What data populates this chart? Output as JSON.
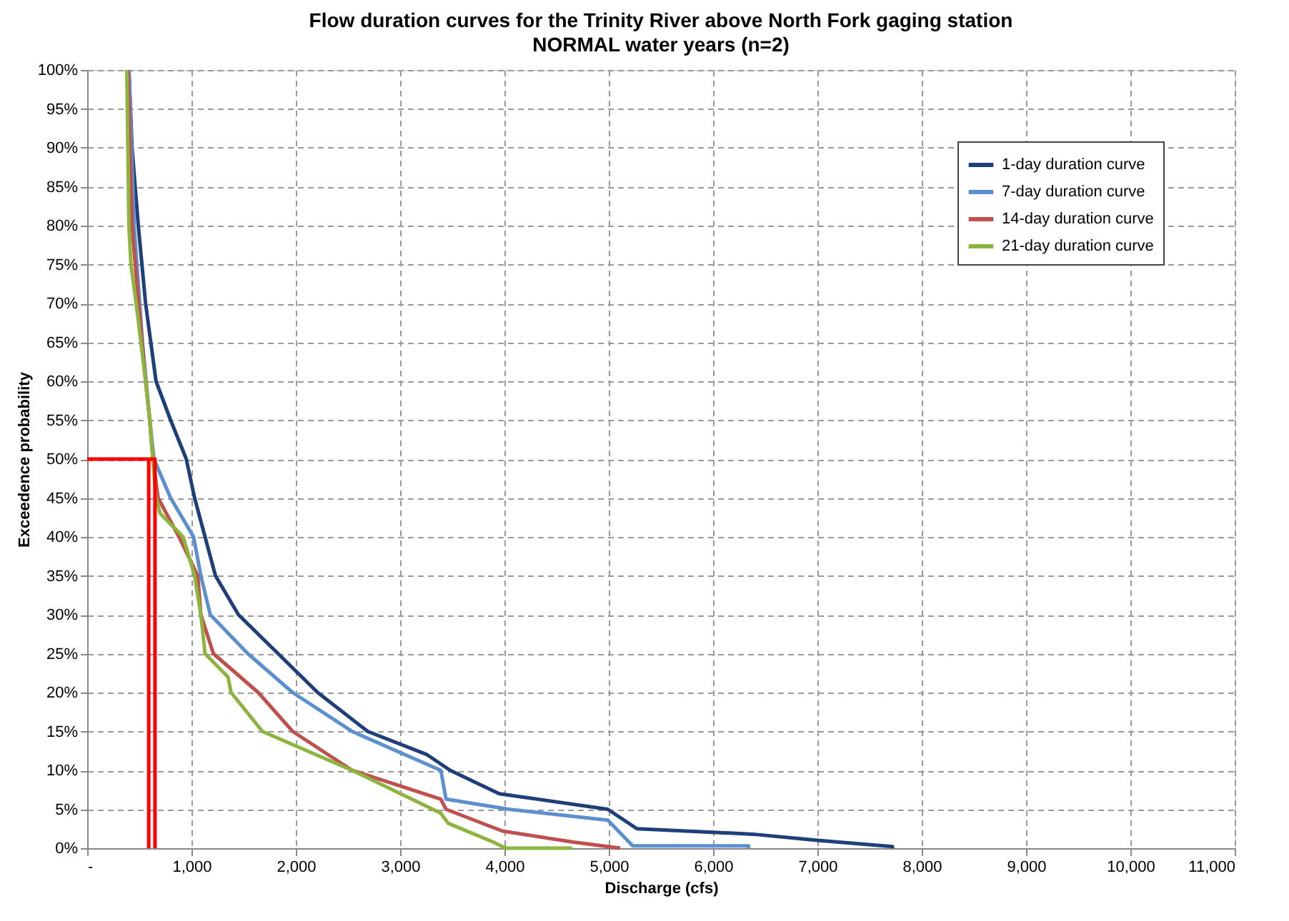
{
  "chart_data": {
    "type": "line",
    "title": "Flow duration curves for the Trinity River above North Fork gaging station",
    "subtitle": "NORMAL water years (n=2)",
    "xlabel": "Discharge (cfs)",
    "ylabel": "Exceedence probability",
    "xlim": [
      0,
      11000
    ],
    "xticks": [
      {
        "value": 0,
        "label": "-"
      },
      {
        "value": 1000,
        "label": "1,000"
      },
      {
        "value": 2000,
        "label": "2,000"
      },
      {
        "value": 3000,
        "label": "3,000"
      },
      {
        "value": 4000,
        "label": "4,000"
      },
      {
        "value": 5000,
        "label": "5,000"
      },
      {
        "value": 6000,
        "label": "6,000"
      },
      {
        "value": 7000,
        "label": "7,000"
      },
      {
        "value": 8000,
        "label": "8,000"
      },
      {
        "value": 9000,
        "label": "9,000"
      },
      {
        "value": 10000,
        "label": "10,000"
      },
      {
        "value": 11000,
        "label": "11,000"
      }
    ],
    "ylim": [
      0,
      100
    ],
    "yticks": [
      {
        "value": 0,
        "label": "0%"
      },
      {
        "value": 5,
        "label": "5%"
      },
      {
        "value": 10,
        "label": "10%"
      },
      {
        "value": 15,
        "label": "15%"
      },
      {
        "value": 20,
        "label": "20%"
      },
      {
        "value": 25,
        "label": "25%"
      },
      {
        "value": 30,
        "label": "30%"
      },
      {
        "value": 35,
        "label": "35%"
      },
      {
        "value": 40,
        "label": "40%"
      },
      {
        "value": 45,
        "label": "45%"
      },
      {
        "value": 50,
        "label": "50%"
      },
      {
        "value": 55,
        "label": "55%"
      },
      {
        "value": 60,
        "label": "60%"
      },
      {
        "value": 65,
        "label": "65%"
      },
      {
        "value": 70,
        "label": "70%"
      },
      {
        "value": 75,
        "label": "75%"
      },
      {
        "value": 80,
        "label": "80%"
      },
      {
        "value": 85,
        "label": "85%"
      },
      {
        "value": 90,
        "label": "90%"
      },
      {
        "value": 95,
        "label": "95%"
      },
      {
        "value": 100,
        "label": "100%"
      }
    ],
    "grid": true,
    "legend": "top right",
    "marker": "none",
    "line_style": "solid",
    "series": [
      {
        "name": "1-day duration curve",
        "color": "#1f3f7a",
        "x": [
          400,
          430,
          490,
          560,
          660,
          800,
          950,
          1030,
          1130,
          1230,
          1450,
          1830,
          2210,
          2690,
          3260,
          3480,
          3950,
          4990,
          5270,
          6380,
          7000,
          7720,
          7720
        ],
        "values": [
          100,
          90,
          80,
          70,
          60,
          55,
          50,
          45,
          40,
          35,
          30,
          25,
          20,
          15,
          12,
          10,
          7,
          5,
          2.5,
          1.8,
          1,
          0.2,
          0
        ]
      },
      {
        "name": "7-day duration curve",
        "color": "#5b8fd0",
        "x": [
          400,
          450,
          530,
          600,
          640,
          800,
          1020,
          1090,
          1180,
          1540,
          1970,
          2540,
          3390,
          3440,
          4040,
          4990,
          5230,
          6340,
          6340
        ],
        "values": [
          100,
          80,
          65,
          55,
          50,
          45,
          40,
          35,
          30,
          25,
          20,
          15,
          10,
          6.3,
          5,
          3.6,
          0.3,
          0.3,
          0
        ]
      },
      {
        "name": "14-day duration curve",
        "color": "#c0504d",
        "x": [
          390,
          430,
          480,
          560,
          600,
          630,
          680,
          880,
          1060,
          1090,
          1210,
          1640,
          1970,
          2540,
          3390,
          3440,
          3980,
          4650,
          5110
        ],
        "values": [
          100,
          80,
          72,
          60,
          55,
          50,
          45,
          40,
          35,
          30,
          25,
          20,
          15,
          10,
          6.3,
          5,
          2.2,
          0.8,
          0
        ]
      },
      {
        "name": "21-day duration curve",
        "color": "#8db43e",
        "x": [
          380,
          400,
          420,
          470,
          560,
          600,
          630,
          660,
          700,
          920,
          1030,
          1090,
          1130,
          1350,
          1380,
          1680,
          2540,
          3390,
          3460,
          3890,
          4010,
          4650
        ],
        "values": [
          100,
          80,
          75,
          70,
          60,
          55,
          50,
          45,
          43,
          40,
          35,
          30,
          25,
          22,
          20,
          15,
          10,
          4.5,
          3.2,
          0.8,
          0,
          0
        ]
      },
      {
        "color": "#ff0000",
        "x": [
          0,
          650,
          650
        ],
        "values": [
          50,
          50,
          0
        ]
      },
      {
        "color": "#ff0000",
        "x": [
          590,
          590
        ],
        "values": [
          50,
          0
        ]
      }
    ]
  }
}
